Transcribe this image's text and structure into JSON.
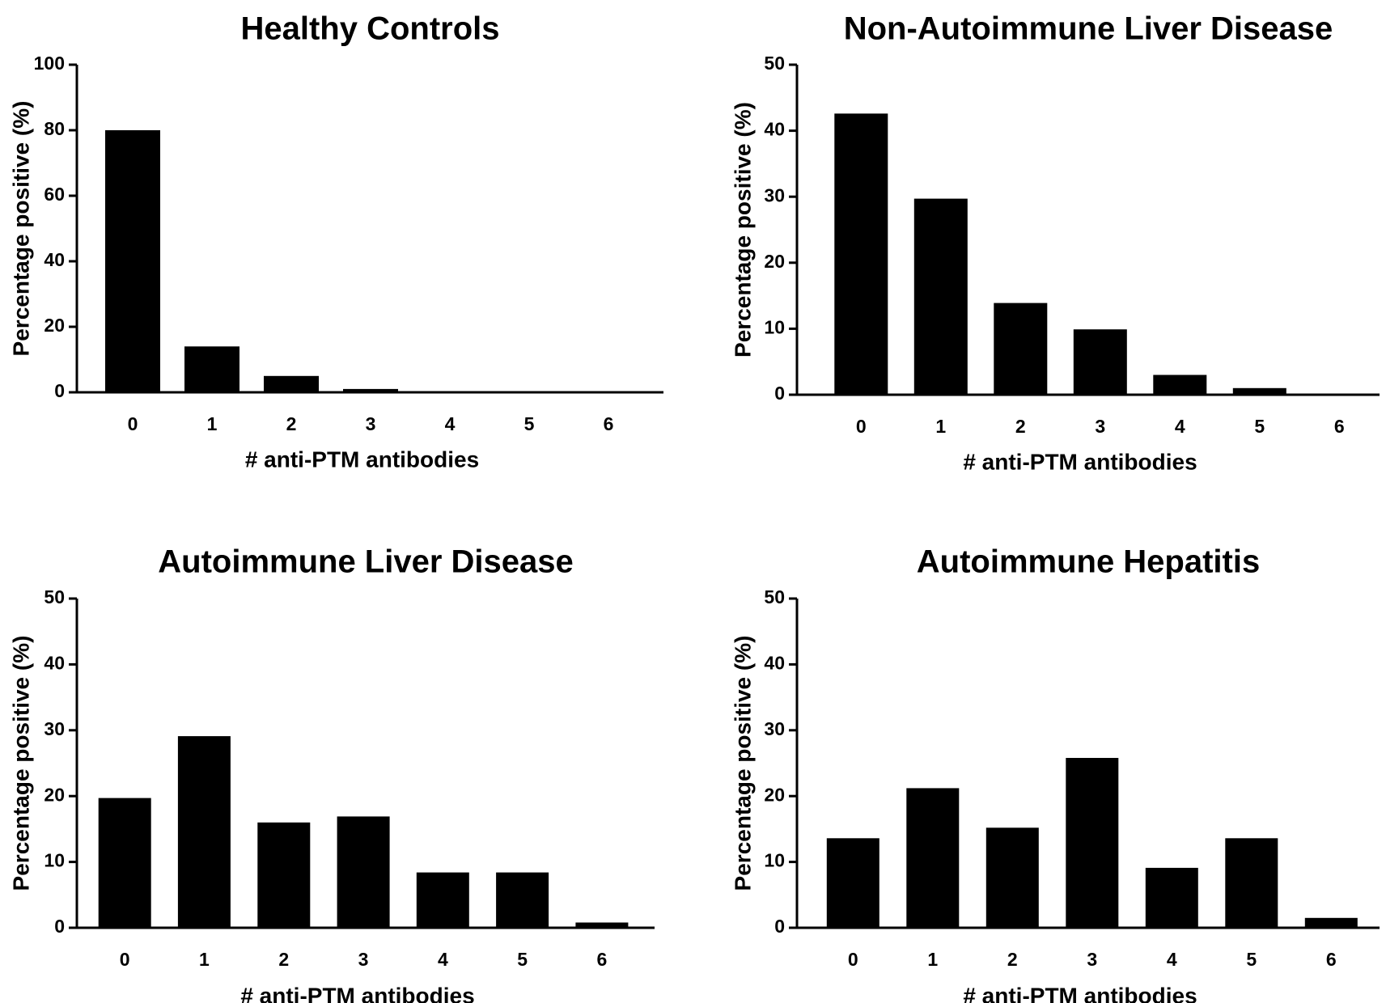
{
  "chart_data": [
    {
      "type": "bar",
      "title": "Healthy Controls",
      "xlabel": "# anti-PTM antibodies",
      "ylabel": "Percentage positive (%)",
      "categories": [
        "0",
        "1",
        "2",
        "3",
        "4",
        "5",
        "6"
      ],
      "values": [
        80,
        14,
        5,
        1,
        0,
        0,
        0
      ],
      "ylim": [
        0,
        100
      ],
      "yticks": [
        0,
        20,
        40,
        60,
        80,
        100
      ],
      "ytick_labels": [
        "0",
        "20",
        "40",
        "60",
        "80",
        "100"
      ],
      "color": "#000000",
      "grid": false
    },
    {
      "type": "bar",
      "title": "Non-Autoimmune Liver Disease",
      "xlabel": "# anti-PTM antibodies",
      "ylabel": "Percentage positive (%)",
      "categories": [
        "0",
        "1",
        "2",
        "3",
        "4",
        "5",
        "6"
      ],
      "values": [
        42.6,
        29.7,
        13.9,
        9.9,
        3,
        1,
        0
      ],
      "ylim": [
        0,
        50
      ],
      "yticks": [
        0,
        10,
        20,
        30,
        40,
        50
      ],
      "ytick_labels": [
        "0",
        "10",
        "20",
        "30",
        "40",
        "50"
      ],
      "color": "#000000",
      "grid": false
    },
    {
      "type": "bar",
      "title": "Autoimmune Liver Disease",
      "xlabel": "# anti-PTM antibodies",
      "ylabel": "Percentage positive (%)",
      "categories": [
        "0",
        "1",
        "2",
        "3",
        "4",
        "5",
        "6"
      ],
      "values": [
        19.7,
        29.1,
        16,
        16.9,
        8.4,
        8.4,
        0.8
      ],
      "ylim": [
        0,
        50
      ],
      "yticks": [
        0,
        10,
        20,
        30,
        40,
        50
      ],
      "ytick_labels": [
        "0",
        "10",
        "20",
        "30",
        "40",
        "50"
      ],
      "color": "#000000",
      "grid": false
    },
    {
      "type": "bar",
      "title": "Autoimmune Hepatitis",
      "xlabel": "# anti-PTM antibodies",
      "ylabel": "Percentage positive (%)",
      "categories": [
        "0",
        "1",
        "2",
        "3",
        "4",
        "5",
        "6"
      ],
      "values": [
        13.6,
        21.2,
        15.2,
        25.8,
        9.1,
        13.6,
        1.5
      ],
      "ylim": [
        0,
        50
      ],
      "yticks": [
        0,
        10,
        20,
        30,
        40,
        50
      ],
      "ytick_labels": [
        "0",
        "10",
        "20",
        "30",
        "40",
        "50"
      ],
      "color": "#000000",
      "grid": false
    }
  ]
}
